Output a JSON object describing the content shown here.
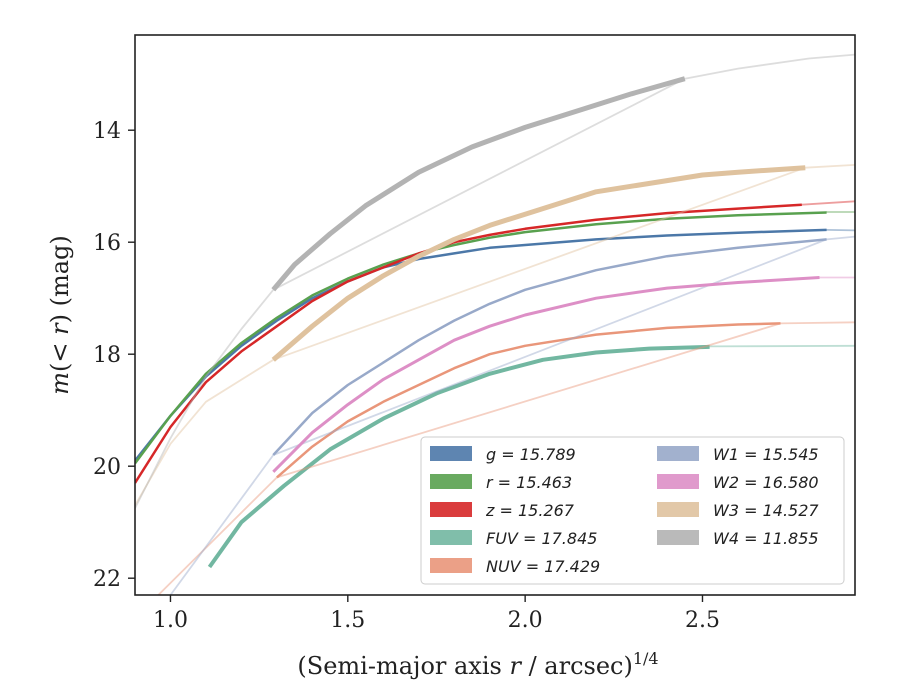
{
  "chart_data": {
    "type": "line",
    "xlabel": "(Semi-major axis r / arcsec)^1/4",
    "xlabel_parts": {
      "pre": "(Semi-major axis ",
      "var": "r",
      "post": " / arcsec)",
      "sup": "1/4"
    },
    "ylabel": "m(< r) (mag)",
    "ylabel_parts": {
      "var": "m",
      "rest": "(< ",
      "var2": "r",
      "tail": ") (mag)"
    },
    "xlim": [
      0.9,
      2.93
    ],
    "ylim": [
      22.3,
      12.3
    ],
    "y_inverted": true,
    "xticks": [
      "1.0",
      "1.5",
      "2.0",
      "2.5"
    ],
    "xtick_values": [
      1.0,
      1.5,
      2.0,
      2.5
    ],
    "yticks": [
      "14",
      "16",
      "18",
      "20",
      "22"
    ],
    "ytick_values": [
      14,
      16,
      18,
      20,
      22
    ],
    "grid": false,
    "legend_placement": "lower-right",
    "series": [
      {
        "name": "g",
        "label": "g = 15.789",
        "color": "#4c78a8",
        "width": 2.5,
        "faint": [
          [
            2.85,
            15.78
          ],
          [
            2.93,
            15.79
          ]
        ],
        "points": [
          [
            0.9,
            19.9
          ],
          [
            1.0,
            19.1
          ],
          [
            1.1,
            18.4
          ],
          [
            1.2,
            17.85
          ],
          [
            1.3,
            17.4
          ],
          [
            1.4,
            17.0
          ],
          [
            1.5,
            16.7
          ],
          [
            1.6,
            16.45
          ],
          [
            1.7,
            16.3
          ],
          [
            1.8,
            16.2
          ],
          [
            1.9,
            16.1
          ],
          [
            2.0,
            16.05
          ],
          [
            2.2,
            15.95
          ],
          [
            2.4,
            15.88
          ],
          [
            2.6,
            15.83
          ],
          [
            2.85,
            15.78
          ]
        ]
      },
      {
        "name": "r",
        "label": "r = 15.463",
        "color": "#59a14f",
        "width": 2.5,
        "faint": [
          [
            2.85,
            15.46
          ],
          [
            2.93,
            15.46
          ]
        ],
        "points": [
          [
            0.9,
            19.95
          ],
          [
            1.0,
            19.1
          ],
          [
            1.1,
            18.35
          ],
          [
            1.2,
            17.8
          ],
          [
            1.3,
            17.35
          ],
          [
            1.4,
            16.95
          ],
          [
            1.5,
            16.65
          ],
          [
            1.6,
            16.4
          ],
          [
            1.7,
            16.2
          ],
          [
            1.8,
            16.05
          ],
          [
            1.9,
            15.92
          ],
          [
            2.0,
            15.82
          ],
          [
            2.2,
            15.68
          ],
          [
            2.4,
            15.58
          ],
          [
            2.6,
            15.52
          ],
          [
            2.85,
            15.47
          ]
        ]
      },
      {
        "name": "z",
        "label": "z = 15.267",
        "color": "#d62728",
        "width": 2.5,
        "faint": [
          [
            2.78,
            15.33
          ],
          [
            2.93,
            15.27
          ]
        ],
        "points": [
          [
            0.9,
            20.3
          ],
          [
            1.0,
            19.3
          ],
          [
            1.1,
            18.5
          ],
          [
            1.2,
            17.95
          ],
          [
            1.3,
            17.5
          ],
          [
            1.4,
            17.05
          ],
          [
            1.5,
            16.7
          ],
          [
            1.6,
            16.45
          ],
          [
            1.7,
            16.2
          ],
          [
            1.8,
            16.0
          ],
          [
            1.9,
            15.87
          ],
          [
            2.0,
            15.76
          ],
          [
            2.2,
            15.6
          ],
          [
            2.4,
            15.48
          ],
          [
            2.6,
            15.4
          ],
          [
            2.78,
            15.33
          ]
        ]
      },
      {
        "name": "FUV",
        "label": "FUV = 17.845",
        "color": "#72b7a1",
        "width": 4,
        "faint": [
          [
            2.52,
            17.86
          ],
          [
            2.93,
            17.85
          ]
        ],
        "points": [
          [
            1.11,
            21.8
          ],
          [
            1.2,
            21.0
          ],
          [
            1.32,
            20.35
          ],
          [
            1.45,
            19.7
          ],
          [
            1.6,
            19.15
          ],
          [
            1.75,
            18.7
          ],
          [
            1.9,
            18.35
          ],
          [
            2.05,
            18.1
          ],
          [
            2.2,
            17.97
          ],
          [
            2.35,
            17.9
          ],
          [
            2.52,
            17.87
          ]
        ]
      },
      {
        "name": "NUV",
        "label": "NUV = 17.429",
        "color": "#e9967a",
        "width": 2.5,
        "faint": [
          [
            0.95,
            22.4
          ],
          [
            1.3,
            20.2
          ],
          [
            2.72,
            17.45
          ],
          [
            2.93,
            17.43
          ]
        ],
        "points": [
          [
            1.3,
            20.2
          ],
          [
            1.4,
            19.65
          ],
          [
            1.5,
            19.2
          ],
          [
            1.6,
            18.85
          ],
          [
            1.7,
            18.55
          ],
          [
            1.8,
            18.25
          ],
          [
            1.9,
            18.0
          ],
          [
            2.0,
            17.85
          ],
          [
            2.2,
            17.65
          ],
          [
            2.4,
            17.53
          ],
          [
            2.6,
            17.47
          ],
          [
            2.72,
            17.45
          ]
        ]
      },
      {
        "name": "W1",
        "label": "W1 = 15.545",
        "color": "#98a9c9",
        "width": 2.5,
        "faint": [
          [
            1.0,
            22.3
          ],
          [
            1.29,
            19.8
          ],
          [
            2.85,
            15.95
          ],
          [
            2.93,
            15.9
          ]
        ],
        "points": [
          [
            1.29,
            19.8
          ],
          [
            1.4,
            19.05
          ],
          [
            1.5,
            18.55
          ],
          [
            1.6,
            18.15
          ],
          [
            1.7,
            17.75
          ],
          [
            1.8,
            17.4
          ],
          [
            1.9,
            17.1
          ],
          [
            2.0,
            16.85
          ],
          [
            2.2,
            16.5
          ],
          [
            2.4,
            16.25
          ],
          [
            2.6,
            16.1
          ],
          [
            2.85,
            15.95
          ]
        ]
      },
      {
        "name": "W2",
        "label": "W2 = 16.580",
        "color": "#dd8fc6",
        "width": 3,
        "faint": [
          [
            2.83,
            16.63
          ],
          [
            2.93,
            16.63
          ]
        ],
        "points": [
          [
            1.29,
            20.1
          ],
          [
            1.4,
            19.4
          ],
          [
            1.5,
            18.9
          ],
          [
            1.6,
            18.45
          ],
          [
            1.7,
            18.1
          ],
          [
            1.8,
            17.75
          ],
          [
            1.9,
            17.5
          ],
          [
            2.0,
            17.3
          ],
          [
            2.2,
            17.0
          ],
          [
            2.4,
            16.82
          ],
          [
            2.6,
            16.72
          ],
          [
            2.83,
            16.63
          ]
        ]
      },
      {
        "name": "W3",
        "label": "W3 = 14.527",
        "color": "#dfc29e",
        "width": 5,
        "faint": [
          [
            0.9,
            20.7
          ],
          [
            1.0,
            19.6
          ],
          [
            1.1,
            18.85
          ],
          [
            1.29,
            18.1
          ],
          [
            2.79,
            14.67
          ],
          [
            2.93,
            14.62
          ]
        ],
        "points": [
          [
            1.29,
            18.1
          ],
          [
            1.4,
            17.5
          ],
          [
            1.5,
            17.0
          ],
          [
            1.6,
            16.6
          ],
          [
            1.7,
            16.25
          ],
          [
            1.8,
            15.95
          ],
          [
            1.9,
            15.7
          ],
          [
            2.0,
            15.5
          ],
          [
            2.1,
            15.3
          ],
          [
            2.2,
            15.1
          ],
          [
            2.3,
            15.0
          ],
          [
            2.4,
            14.9
          ],
          [
            2.5,
            14.8
          ],
          [
            2.6,
            14.75
          ],
          [
            2.79,
            14.67
          ]
        ]
      },
      {
        "name": "W4",
        "label": "W4 = 11.855",
        "color": "#b3b3b3",
        "width": 5,
        "faint": [
          [
            0.9,
            20.75
          ],
          [
            1.0,
            19.5
          ],
          [
            1.1,
            18.4
          ],
          [
            1.2,
            17.55
          ],
          [
            1.29,
            16.85
          ],
          [
            2.45,
            13.08
          ],
          [
            2.6,
            12.9
          ],
          [
            2.8,
            12.72
          ],
          [
            2.93,
            12.65
          ]
        ],
        "points": [
          [
            1.29,
            16.85
          ],
          [
            1.35,
            16.4
          ],
          [
            1.45,
            15.85
          ],
          [
            1.55,
            15.35
          ],
          [
            1.7,
            14.75
          ],
          [
            1.85,
            14.3
          ],
          [
            2.0,
            13.95
          ],
          [
            2.15,
            13.65
          ],
          [
            2.3,
            13.35
          ],
          [
            2.45,
            13.08
          ]
        ]
      }
    ]
  }
}
